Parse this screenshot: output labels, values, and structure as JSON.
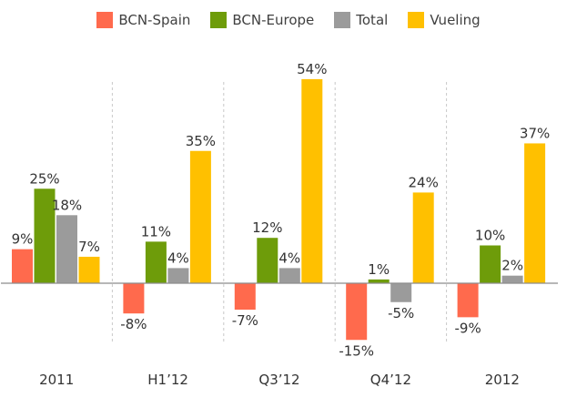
{
  "chart_data": {
    "type": "bar",
    "categories": [
      "2011",
      "H1’12",
      "Q3’12",
      "Q4’12",
      "2012"
    ],
    "series": [
      {
        "name": "BCN-Spain",
        "color": "#ff6a4d",
        "values": [
          9,
          -8,
          -7,
          -15,
          -9
        ],
        "labels": [
          "9%",
          "-8%",
          "-7%",
          "-15%",
          "-9%"
        ]
      },
      {
        "name": "BCN-Europe",
        "color": "#6e9c0a",
        "values": [
          25,
          11,
          12,
          1,
          10
        ],
        "labels": [
          "25%",
          "11%",
          "12%",
          "1%",
          "10%"
        ]
      },
      {
        "name": "Total",
        "color": "#9b9b9b",
        "values": [
          18,
          4,
          4,
          -5,
          2
        ],
        "labels": [
          "18%",
          "4%",
          "4%",
          "-5%",
          "2%"
        ]
      },
      {
        "name": "Vueling",
        "color": "#ffc000",
        "values": [
          7,
          35,
          54,
          24,
          37
        ],
        "labels": [
          "7%",
          "35%",
          "54%",
          "24%",
          "37%"
        ]
      }
    ],
    "legend_position": "top",
    "grid": false,
    "group_separators": "dashed-vertical",
    "baseline": 0
  }
}
